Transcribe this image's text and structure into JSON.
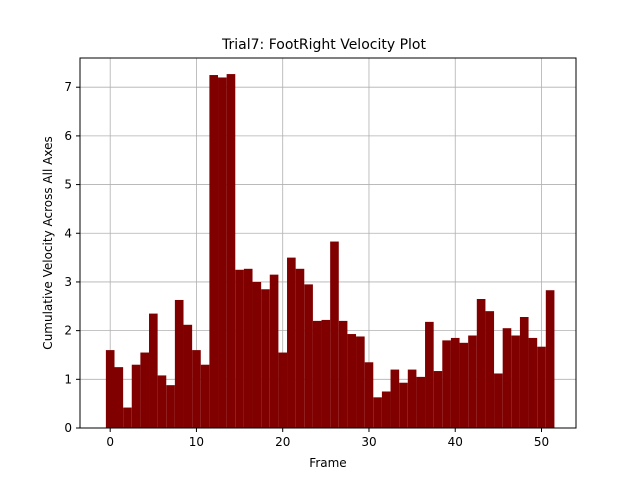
{
  "chart_data": {
    "type": "bar",
    "title": "Trial7: FootRight Velocity Plot",
    "xlabel": "Frame",
    "ylabel": "Cumulative Velocity Across All Axes",
    "x": [
      0,
      1,
      2,
      3,
      4,
      5,
      6,
      7,
      8,
      9,
      10,
      11,
      12,
      13,
      14,
      15,
      16,
      17,
      18,
      19,
      20,
      21,
      22,
      23,
      24,
      25,
      26,
      27,
      28,
      29,
      30,
      31,
      32,
      33,
      34,
      35,
      36,
      37,
      38,
      39,
      40,
      41,
      42,
      43,
      44,
      45,
      46,
      47,
      48,
      49,
      50,
      51
    ],
    "values": [
      1.6,
      1.25,
      0.42,
      1.3,
      1.55,
      2.35,
      1.08,
      0.88,
      2.63,
      2.12,
      1.6,
      1.3,
      7.25,
      7.2,
      7.27,
      3.25,
      3.27,
      3.0,
      2.85,
      3.15,
      1.55,
      3.5,
      3.27,
      2.95,
      2.2,
      2.22,
      3.83,
      2.2,
      1.93,
      1.88,
      1.35,
      0.63,
      0.75,
      1.2,
      0.93,
      1.2,
      1.05,
      2.18,
      1.17,
      1.8,
      1.85,
      1.75,
      1.9,
      2.65,
      2.4,
      1.12,
      2.05,
      1.9,
      2.28,
      1.85,
      1.67,
      2.83
    ],
    "xlim": [
      -3.5,
      54
    ],
    "ylim": [
      0,
      7.6
    ],
    "xticks": [
      0,
      10,
      20,
      30,
      40,
      50
    ],
    "yticks": [
      0,
      1,
      2,
      3,
      4,
      5,
      6,
      7
    ],
    "grid": true,
    "bar_color": "#800000",
    "grid_color": "#b0b0b0"
  }
}
